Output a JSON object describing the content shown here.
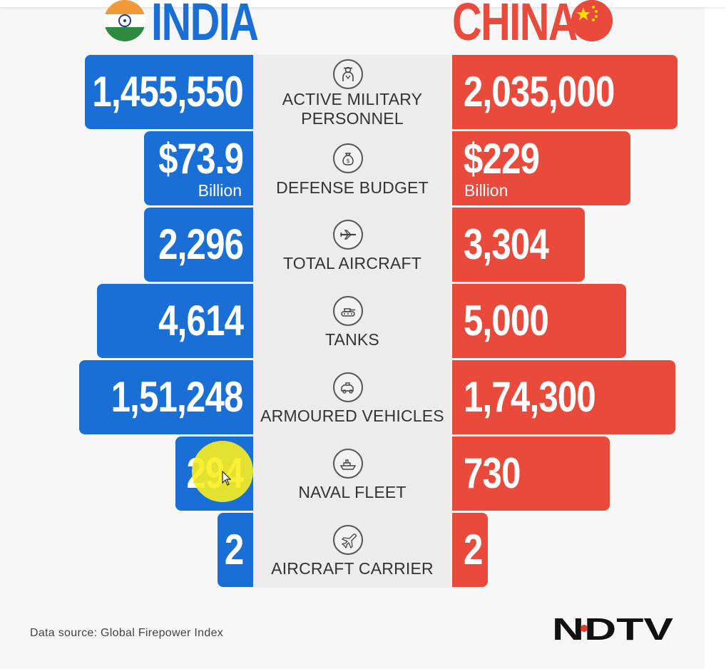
{
  "header": {
    "left_country": "INDIA",
    "right_country": "CHINA"
  },
  "colors": {
    "india": "#1a6fd6",
    "china": "#e94a3c",
    "center_band": "#ececec",
    "background": "#f7f7f7"
  },
  "chart_data": {
    "type": "bar",
    "categories": [
      "ACTIVE MILITARY PERSONNEL",
      "DEFENSE BUDGET",
      "TOTAL AIRCRAFT",
      "TANKS",
      "ARMOURED VEHICLES",
      "NAVAL FLEET",
      "AIRCRAFT CARRIER"
    ],
    "series": [
      {
        "name": "INDIA",
        "values": [
          1455550,
          73.9,
          2296,
          4614,
          151248,
          294,
          2
        ]
      },
      {
        "name": "CHINA",
        "values": [
          2035000,
          229,
          3304,
          5000,
          174300,
          730,
          2
        ]
      }
    ]
  },
  "rows": [
    {
      "label_lines": [
        "ACTIVE MILITARY",
        "PERSONNEL"
      ],
      "icon": "soldier-icon",
      "india": {
        "value": "1,455,550",
        "unit": ""
      },
      "china": {
        "value": "2,035,000",
        "unit": ""
      }
    },
    {
      "label_lines": [
        "DEFENSE BUDGET"
      ],
      "icon": "money-bag-icon",
      "india": {
        "value": "$73.9",
        "unit": "Billion"
      },
      "china": {
        "value": "$229",
        "unit": "Billion"
      }
    },
    {
      "label_lines": [
        "TOTAL AIRCRAFT"
      ],
      "icon": "airplane-icon",
      "india": {
        "value": "2,296",
        "unit": ""
      },
      "china": {
        "value": "3,304",
        "unit": ""
      }
    },
    {
      "label_lines": [
        "TANKS"
      ],
      "icon": "tank-icon",
      "india": {
        "value": "4,614",
        "unit": ""
      },
      "china": {
        "value": "5,000",
        "unit": ""
      }
    },
    {
      "label_lines": [
        "ARMOURED VEHICLES"
      ],
      "icon": "armoured-vehicle-icon",
      "india": {
        "value": "1,51,248",
        "unit": ""
      },
      "china": {
        "value": "1,74,300",
        "unit": ""
      }
    },
    {
      "label_lines": [
        "NAVAL FLEET"
      ],
      "icon": "ship-icon",
      "india": {
        "value": "294",
        "unit": ""
      },
      "china": {
        "value": "730",
        "unit": ""
      }
    },
    {
      "label_lines": [
        "AIRCRAFT CARRIER"
      ],
      "icon": "fighter-jet-icon",
      "india": {
        "value": "2",
        "unit": ""
      },
      "china": {
        "value": "2",
        "unit": ""
      }
    }
  ],
  "footer": {
    "source": "Data source: Global Firepower Index",
    "logo_text": "NDTV"
  }
}
